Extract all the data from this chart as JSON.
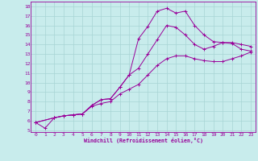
{
  "xlabel": "Windchill (Refroidissement éolien,°C)",
  "xlim": [
    -0.5,
    23.5
  ],
  "ylim": [
    4.8,
    18.5
  ],
  "xticks": [
    0,
    1,
    2,
    3,
    4,
    5,
    6,
    7,
    8,
    9,
    10,
    11,
    12,
    13,
    14,
    15,
    16,
    17,
    18,
    19,
    20,
    21,
    22,
    23
  ],
  "yticks": [
    5,
    6,
    7,
    8,
    9,
    10,
    11,
    12,
    13,
    14,
    15,
    16,
    17,
    18
  ],
  "background_color": "#c8ecec",
  "grid_color": "#a8d4d4",
  "line_color": "#990099",
  "curve1_x": [
    0,
    1,
    2,
    3,
    4,
    5,
    6,
    7,
    8,
    9,
    10,
    11,
    12,
    13,
    14,
    15,
    16,
    17,
    18,
    19,
    20,
    21,
    22,
    23
  ],
  "curve1_y": [
    5.8,
    5.2,
    6.3,
    6.5,
    6.6,
    6.7,
    7.6,
    8.2,
    8.3,
    9.5,
    10.8,
    14.6,
    15.9,
    17.5,
    17.8,
    17.3,
    17.5,
    16.0,
    15.0,
    14.3,
    14.2,
    14.1,
    13.5,
    13.3
  ],
  "curve2_x": [
    0,
    2,
    3,
    4,
    5,
    6,
    7,
    8,
    9,
    10,
    11,
    12,
    13,
    14,
    15,
    16,
    17,
    18,
    19,
    20,
    21,
    22,
    23
  ],
  "curve2_y": [
    5.8,
    6.3,
    6.5,
    6.6,
    6.7,
    7.6,
    8.2,
    8.3,
    9.5,
    10.8,
    11.5,
    13.0,
    14.5,
    16.0,
    15.8,
    15.0,
    14.0,
    13.5,
    13.8,
    14.2,
    14.2,
    14.0,
    13.8
  ],
  "curve3_x": [
    0,
    2,
    3,
    4,
    5,
    6,
    7,
    8,
    9,
    10,
    11,
    12,
    13,
    14,
    15,
    16,
    17,
    18,
    19,
    20,
    21,
    22,
    23
  ],
  "curve3_y": [
    5.8,
    6.3,
    6.5,
    6.6,
    6.7,
    7.5,
    7.8,
    8.0,
    8.8,
    9.3,
    9.8,
    10.8,
    11.8,
    12.5,
    12.8,
    12.8,
    12.5,
    12.3,
    12.2,
    12.2,
    12.5,
    12.8,
    13.2
  ]
}
